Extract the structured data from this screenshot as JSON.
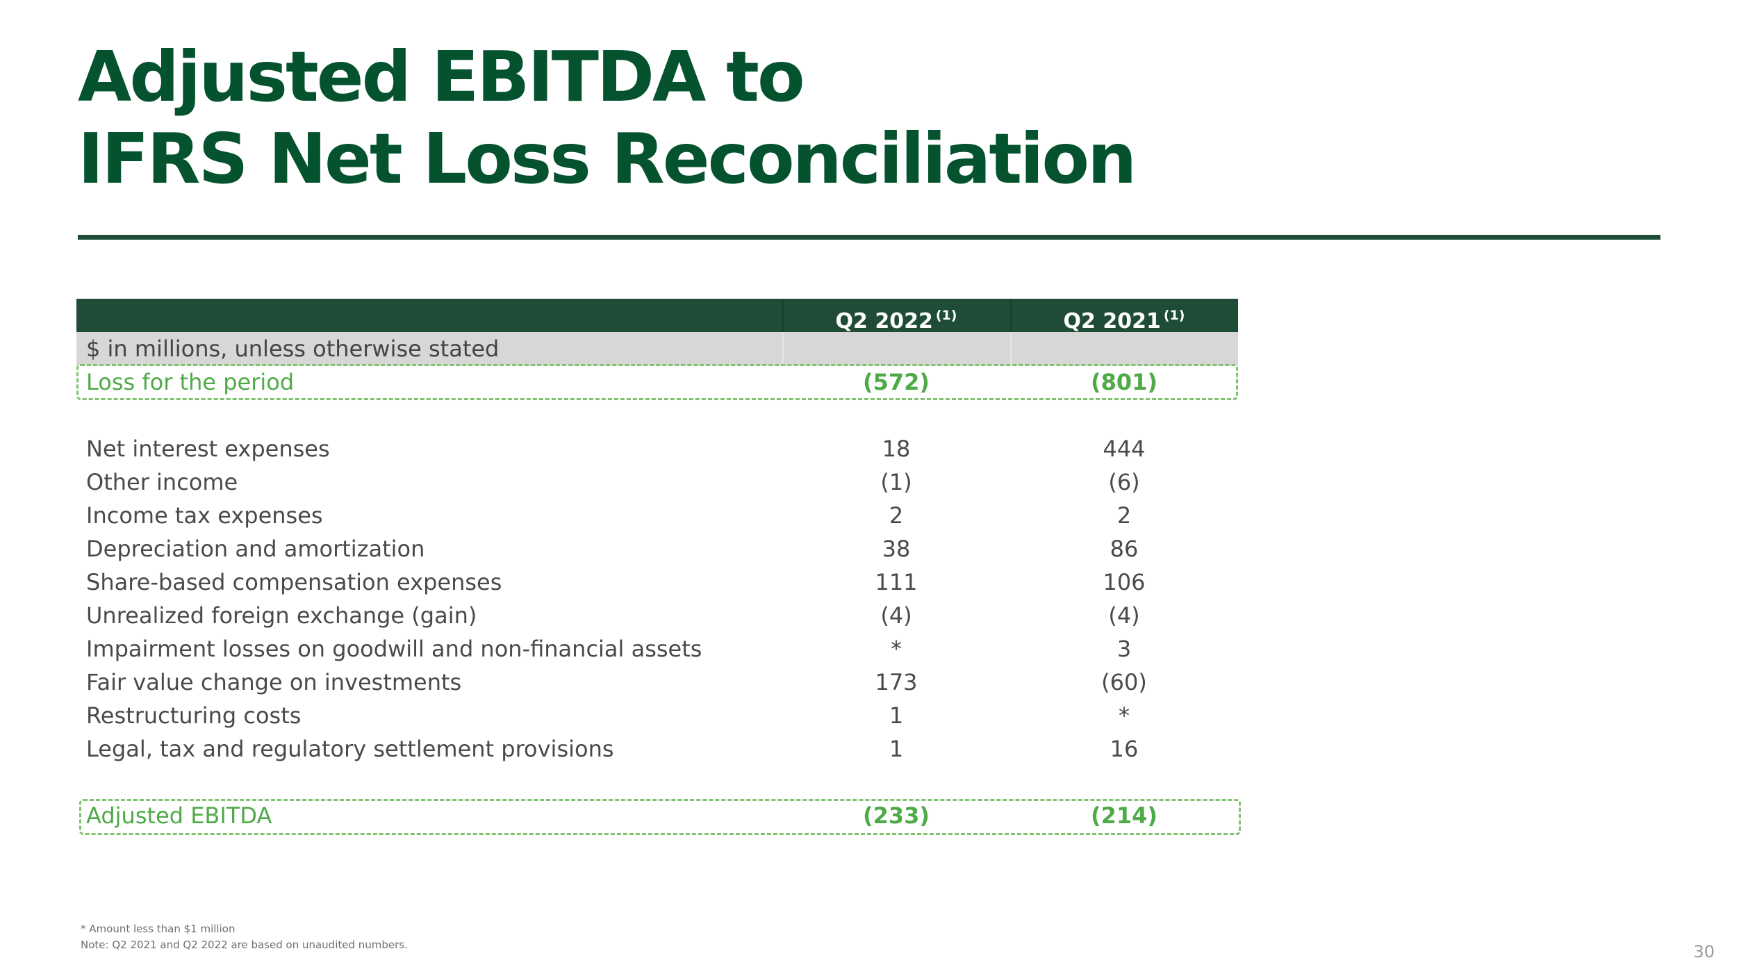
{
  "title": {
    "line1": "Adjusted EBITDA to",
    "line2": "IFRS Net Loss Reconciliation"
  },
  "table": {
    "columns": [
      {
        "label": "Q2 2022",
        "note": "(1)"
      },
      {
        "label": "Q2 2021",
        "note": "(1)"
      }
    ],
    "units_label": "$ in millions, unless otherwise stated",
    "loss_row": {
      "label": "Loss for the period",
      "values": [
        "(572)",
        "(801)"
      ]
    },
    "rows": [
      {
        "label": "Net interest expenses",
        "values": [
          "18",
          "444"
        ]
      },
      {
        "label": "Other income",
        "values": [
          "(1)",
          "(6)"
        ]
      },
      {
        "label": "Income tax expenses",
        "values": [
          "2",
          "2"
        ]
      },
      {
        "label": "Depreciation and amortization",
        "values": [
          "38",
          "86"
        ]
      },
      {
        "label": "Share-based compensation expenses",
        "values": [
          "111",
          "106"
        ]
      },
      {
        "label": "Unrealized foreign exchange (gain)",
        "values": [
          "(4)",
          "(4)"
        ]
      },
      {
        "label": "Impairment losses on goodwill and non-financial assets",
        "values": [
          "*",
          "3"
        ]
      },
      {
        "label": "Fair value change on investments",
        "values": [
          "173",
          "(60)"
        ]
      },
      {
        "label": "Restructuring costs",
        "values": [
          "1",
          "*"
        ]
      },
      {
        "label": "Legal, tax and regulatory settlement provisions",
        "values": [
          "1",
          "16"
        ]
      }
    ],
    "total_row": {
      "label": "Adjusted EBITDA",
      "values": [
        "(233)",
        "(214)"
      ]
    }
  },
  "footnotes": {
    "line1": "* Amount less than $1 million",
    "line2": "Note: Q2 2021 and Q2 2022 are based on unaudited numbers."
  },
  "page_number": "30",
  "colors": {
    "title": "#04522e",
    "header_band": "#1f4c36",
    "highlight_text": "#4eaa47",
    "dashed_border": "#7ec36d",
    "units_band": "#d7d7d7"
  }
}
